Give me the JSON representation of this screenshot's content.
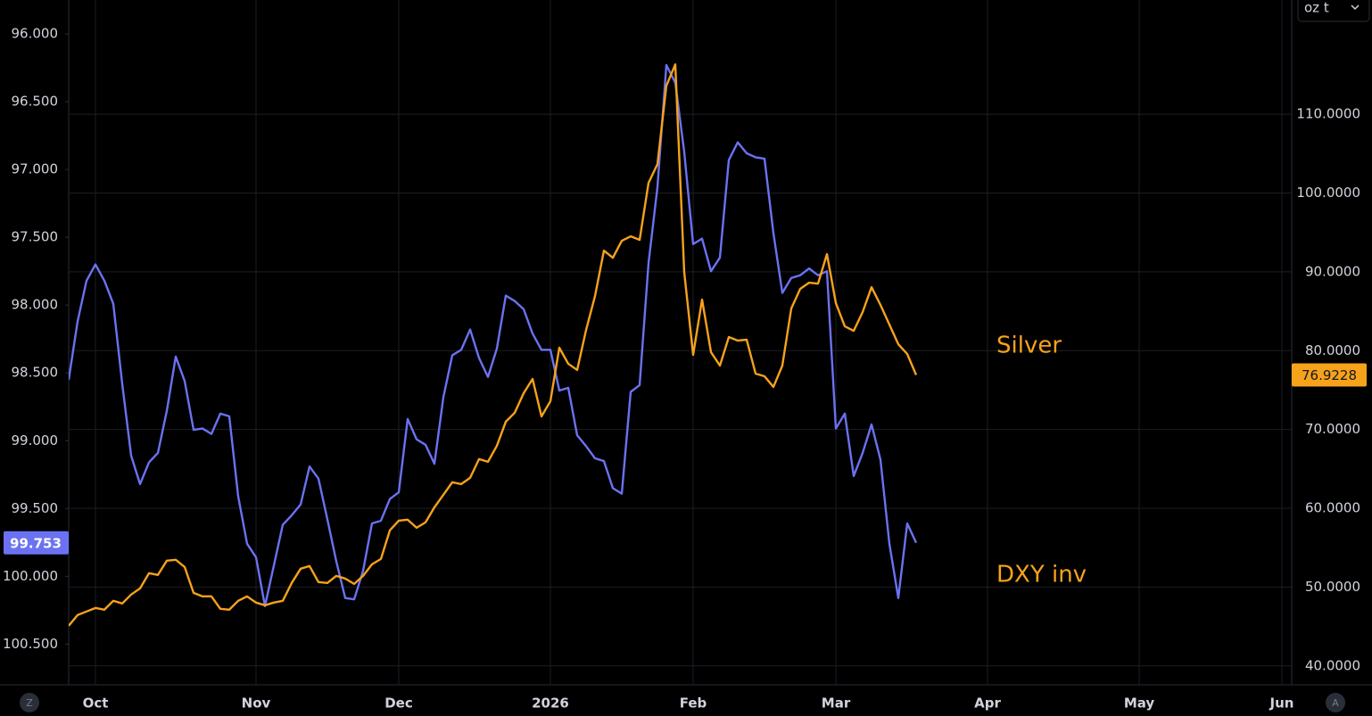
{
  "chart_data": {
    "type": "line",
    "unit": "oz t",
    "buttons": [
      "Z",
      "A"
    ],
    "annotation_color": "#f7a21b",
    "grid": true,
    "categories": [
      null,
      null,
      null,
      "Oct",
      null,
      null,
      null,
      null,
      null,
      null,
      null,
      null,
      null,
      null,
      null,
      null,
      null,
      null,
      null,
      null,
      null,
      "Nov",
      null,
      null,
      null,
      null,
      null,
      null,
      null,
      null,
      null,
      null,
      null,
      null,
      null,
      null,
      null,
      "Dec",
      null,
      null,
      null,
      null,
      null,
      null,
      null,
      null,
      null,
      null,
      null,
      null,
      null,
      null,
      null,
      null,
      "2026",
      null,
      null,
      null,
      null,
      null,
      null,
      null,
      null,
      null,
      null,
      null,
      null,
      null,
      null,
      null,
      "Feb",
      null,
      null,
      null,
      null,
      null,
      null,
      null,
      null,
      null,
      null,
      null,
      null,
      null,
      null,
      null,
      "Mar",
      null,
      null,
      null,
      null,
      null,
      null,
      null,
      null,
      null,
      null,
      null,
      null,
      null,
      null,
      null,
      null,
      "Apr",
      null,
      null,
      null,
      null,
      null,
      null,
      null,
      null,
      null,
      null,
      null,
      null,
      null,
      null,
      null,
      null,
      "May",
      null,
      null,
      null,
      null,
      null,
      null,
      null,
      null,
      null,
      null,
      null,
      null,
      null,
      null,
      null,
      "Jun"
    ],
    "ylim": [
      100.8,
      95.75
    ],
    "yticks": [
      {
        "value": 96,
        "label": "96.000"
      },
      {
        "value": 96.5,
        "label": "96.500"
      },
      {
        "value": 97,
        "label": "97.000"
      },
      {
        "value": 97.5,
        "label": "97.500"
      },
      {
        "value": 98,
        "label": "98.000"
      },
      {
        "value": 98.5,
        "label": "98.500"
      },
      {
        "value": 99,
        "label": "99.000"
      },
      {
        "value": 99.5,
        "label": "99.500"
      },
      {
        "value": 100,
        "label": "100.000"
      },
      {
        "value": 100.5,
        "label": "100.500"
      }
    ],
    "y2lim": [
      37.6,
      124.5
    ],
    "y2ticks": [
      {
        "value": 40,
        "label": "40.0000"
      },
      {
        "value": 50,
        "label": "50.0000"
      },
      {
        "value": 60,
        "label": "60.0000"
      },
      {
        "value": 70,
        "label": "70.0000"
      },
      {
        "value": 80,
        "label": "80.0000"
      },
      {
        "value": 90,
        "label": "90.0000"
      },
      {
        "value": 100,
        "label": "100.0000"
      },
      {
        "value": 110,
        "label": "110.0000"
      }
    ],
    "series": [
      {
        "name": "DXY inv",
        "color": "#6b72f2",
        "axis": "y",
        "values": [
          98.55,
          98.12,
          97.82,
          97.7,
          97.82,
          97.99,
          98.58,
          99.11,
          99.32,
          99.16,
          99.09,
          98.78,
          98.38,
          98.56,
          98.92,
          98.91,
          98.95,
          98.8,
          98.82,
          99.41,
          99.76,
          99.86,
          100.22,
          99.92,
          99.62,
          99.55,
          99.47,
          99.19,
          99.28,
          99.58,
          99.89,
          100.16,
          100.17,
          99.96,
          99.61,
          99.59,
          99.43,
          99.38,
          98.84,
          98.99,
          99.03,
          99.17,
          98.68,
          98.37,
          98.33,
          98.18,
          98.39,
          98.53,
          98.32,
          97.93,
          97.97,
          98.03,
          98.21,
          98.33,
          98.33,
          98.63,
          98.61,
          98.96,
          99.04,
          99.13,
          99.15,
          99.35,
          99.39,
          98.64,
          98.59,
          97.69,
          97.13,
          96.23,
          96.36,
          96.87,
          97.55,
          97.51,
          97.75,
          97.65,
          96.93,
          96.8,
          96.88,
          96.91,
          96.92,
          97.47,
          97.91,
          97.8,
          97.78,
          97.73,
          97.78,
          97.75,
          98.91,
          98.8,
          99.26,
          99.09,
          98.88,
          99.14,
          99.76,
          100.16,
          99.61,
          99.753,
          null,
          null,
          null,
          null,
          null,
          null,
          null,
          null,
          null,
          null,
          null,
          null,
          null,
          null,
          null,
          null,
          null,
          null,
          null,
          null,
          null,
          null,
          null,
          null,
          null,
          null,
          null,
          null,
          null,
          null,
          null,
          null,
          null,
          null,
          null,
          null,
          null,
          null,
          null,
          null,
          null
        ]
      },
      {
        "name": "Silver",
        "color": "#f7a21b",
        "axis": "y2",
        "values": [
          45.09,
          46.45,
          46.9,
          47.35,
          47.13,
          48.26,
          47.92,
          49.05,
          49.84,
          51.76,
          51.54,
          53.35,
          53.46,
          52.55,
          49.27,
          48.82,
          48.82,
          47.24,
          47.13,
          48.26,
          48.82,
          48.03,
          47.69,
          48.03,
          48.26,
          50.52,
          52.33,
          52.67,
          50.63,
          50.52,
          51.42,
          51.08,
          50.4,
          51.42,
          52.89,
          53.57,
          57.19,
          58.43,
          58.55,
          57.53,
          58.21,
          60.13,
          61.71,
          63.3,
          63.07,
          63.86,
          66.24,
          65.9,
          67.93,
          70.99,
          72.12,
          74.6,
          76.41,
          71.66,
          73.59,
          80.37,
          78.34,
          77.55,
          82.63,
          86.93,
          92.7,
          91.79,
          93.94,
          94.51,
          94.06,
          101.29,
          103.67,
          113.62,
          116.33,
          89.98,
          79.47,
          86.48,
          79.81,
          78.11,
          81.73,
          81.28,
          81.39,
          77.09,
          76.75,
          75.4,
          78.11,
          85.35,
          87.84,
          88.63,
          88.51,
          92.25,
          86.03,
          83.09,
          82.52,
          84.9,
          88.06,
          85.8,
          83.31,
          80.82,
          79.58,
          76.9228,
          null,
          null,
          null,
          null,
          null,
          null,
          null,
          null,
          null,
          null,
          null,
          null,
          null,
          null,
          null,
          null,
          null,
          null,
          null,
          null,
          null,
          null,
          null,
          null,
          null,
          null,
          null,
          null,
          null,
          null,
          null,
          null,
          null,
          null,
          null,
          null,
          null,
          null,
          null,
          null,
          null
        ]
      }
    ]
  }
}
